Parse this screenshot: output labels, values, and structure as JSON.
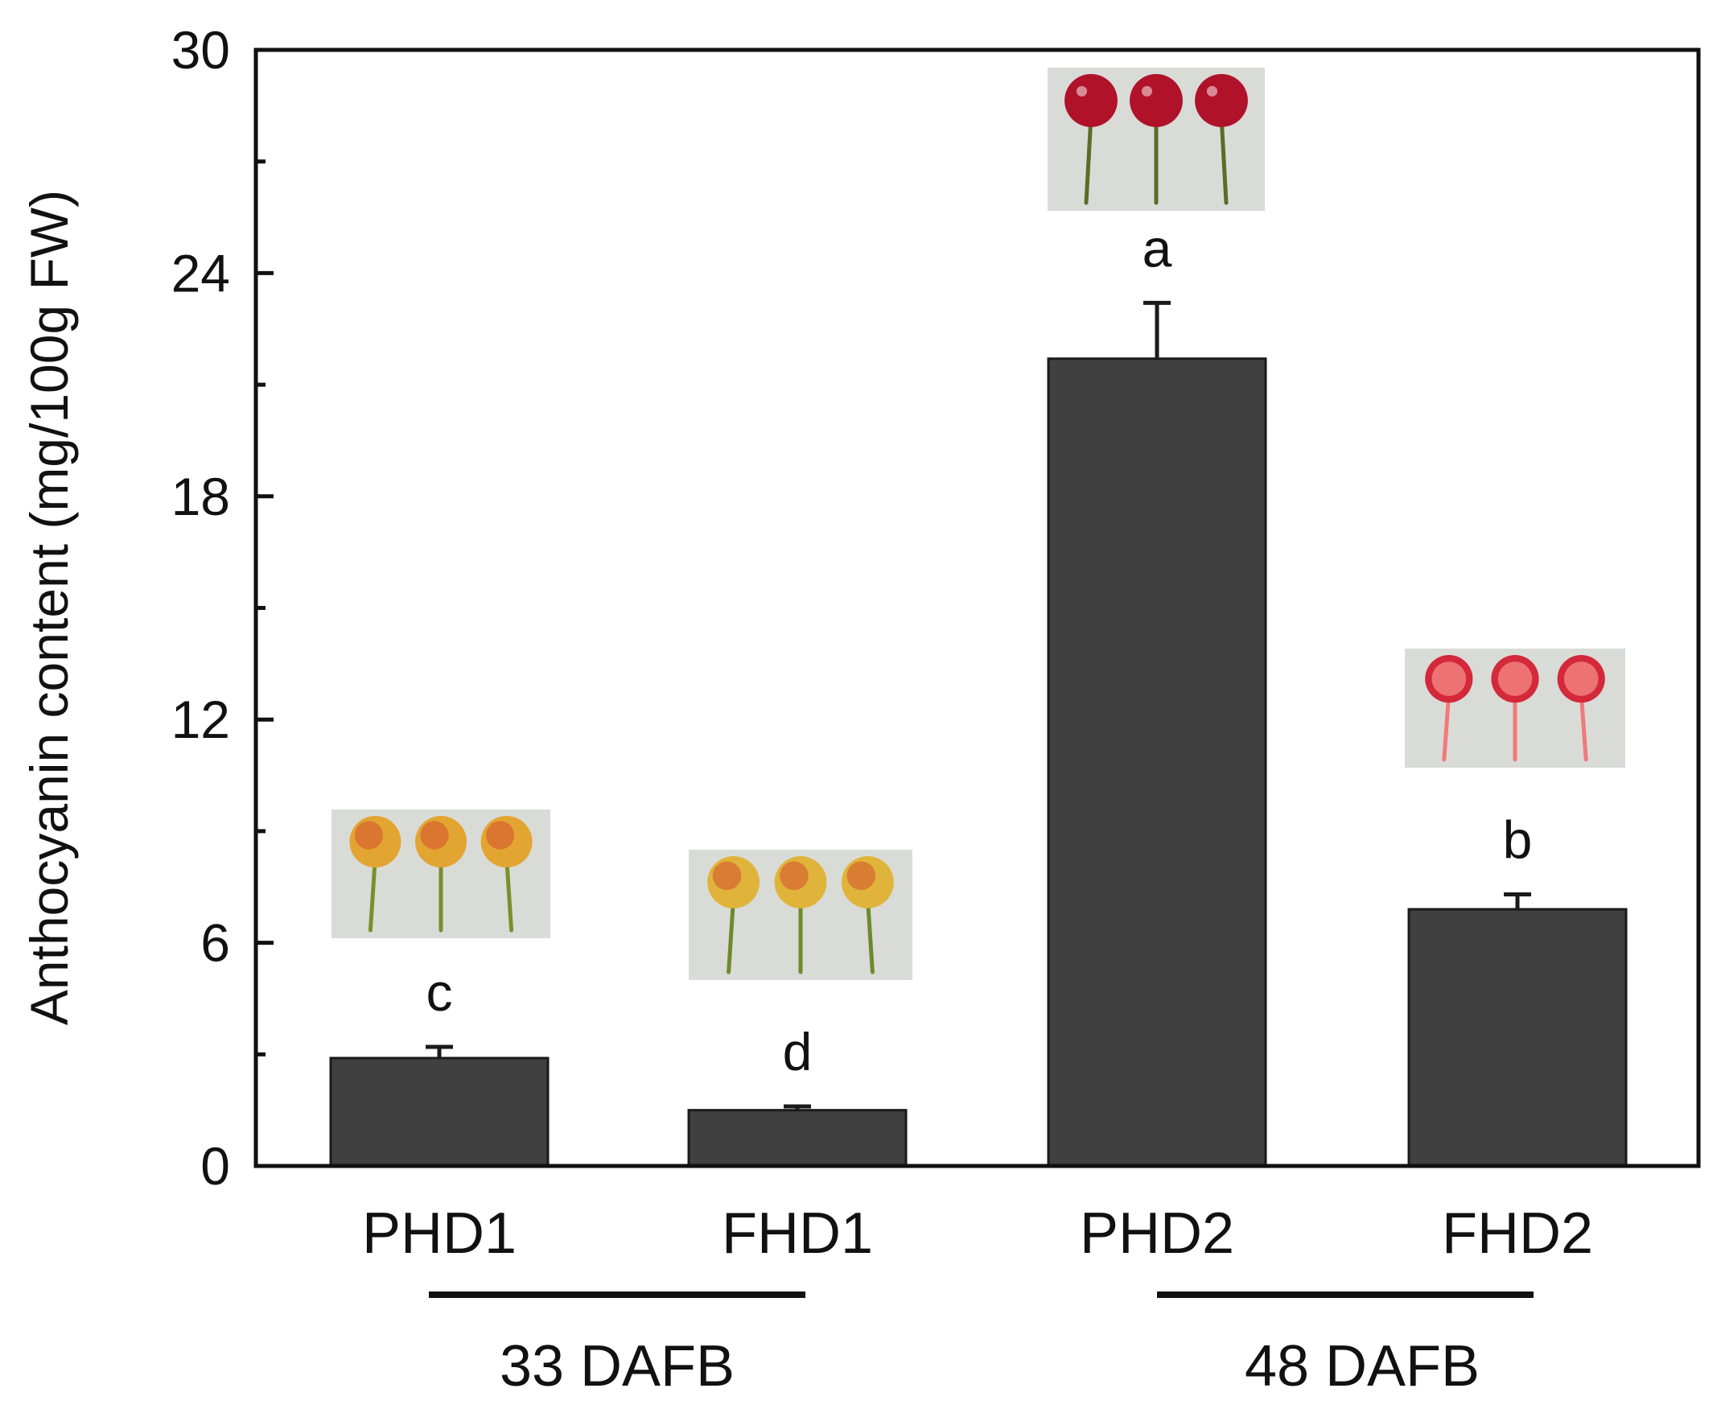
{
  "chart_data": {
    "type": "bar",
    "title": "",
    "xlabel": "",
    "ylabel": "Anthocyanin content (mg/100g FW)",
    "ylim": [
      0,
      30
    ],
    "yticks": [
      0,
      6,
      12,
      18,
      24,
      30
    ],
    "minor_ticks": true,
    "grid": false,
    "legend": "none",
    "categories": [
      "PHD1",
      "FHD1",
      "PHD2",
      "FHD2"
    ],
    "values": [
      2.9,
      1.5,
      21.7,
      6.9
    ],
    "error": [
      0.3,
      0.1,
      1.5,
      0.4
    ],
    "significance": [
      "c",
      "d",
      "a",
      "b"
    ],
    "groups": [
      {
        "label": "33 DAFB",
        "categories": [
          "PHD1",
          "FHD1"
        ]
      },
      {
        "label": "48 DAFB",
        "categories": [
          "PHD2",
          "FHD2"
        ]
      }
    ],
    "bar_color": "#404040",
    "fruit_images": [
      {
        "category": "PHD1",
        "depicts": "yellow-red-blush-cherries",
        "colors": [
          "#e3a531",
          "#7a8f2c"
        ]
      },
      {
        "category": "FHD1",
        "depicts": "yellow-red-blush-cherries",
        "colors": [
          "#e0b43a",
          "#6d8a2a"
        ]
      },
      {
        "category": "PHD2",
        "depicts": "red-cherries",
        "colors": [
          "#b0122a",
          "#5e6b24"
        ]
      },
      {
        "category": "FHD2",
        "depicts": "halved-red-cherries",
        "colors": [
          "#d4283b",
          "#f07a7a"
        ]
      }
    ]
  }
}
